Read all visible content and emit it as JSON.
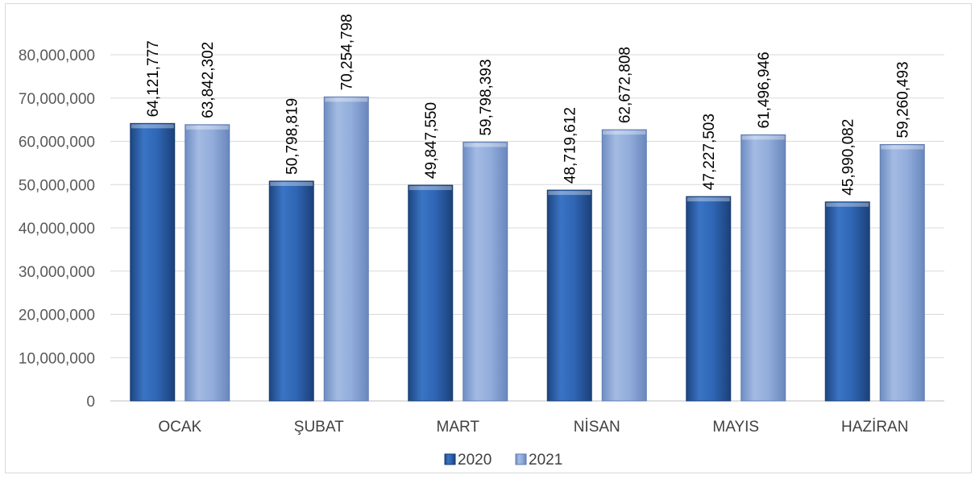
{
  "chart_data": {
    "type": "bar",
    "title": "",
    "xlabel": "",
    "ylabel": "",
    "categories": [
      "OCAK",
      "ŞUBAT",
      "MART",
      "NİSAN",
      "MAYIS",
      "HAZİRAN"
    ],
    "series": [
      {
        "name": "2020",
        "values": [
          64121777,
          50798819,
          49847550,
          48719612,
          47227503,
          45990082
        ],
        "labels": [
          "64,121,777",
          "50,798,819",
          "49,847,550",
          "48,719,612",
          "47,227,503",
          "45,990,082"
        ],
        "color": "#2e62ad"
      },
      {
        "name": "2021",
        "values": [
          63842302,
          70254798,
          59798393,
          62672808,
          61496946,
          59260493
        ],
        "labels": [
          "63,842,302",
          "70,254,798",
          "59,798,393",
          "62,672,808",
          "61,496,946",
          "59,260,493"
        ],
        "color": "#8faad8"
      }
    ],
    "ylim": [
      0,
      80000000
    ],
    "yticks": [
      0,
      10000000,
      20000000,
      30000000,
      40000000,
      50000000,
      60000000,
      70000000,
      80000000
    ],
    "ytick_labels": [
      "0",
      "10,000,000",
      "20,000,000",
      "30,000,000",
      "40,000,000",
      "50,000,000",
      "60,000,000",
      "70,000,000",
      "80,000,000"
    ],
    "grid": true,
    "legend_position": "bottom"
  }
}
